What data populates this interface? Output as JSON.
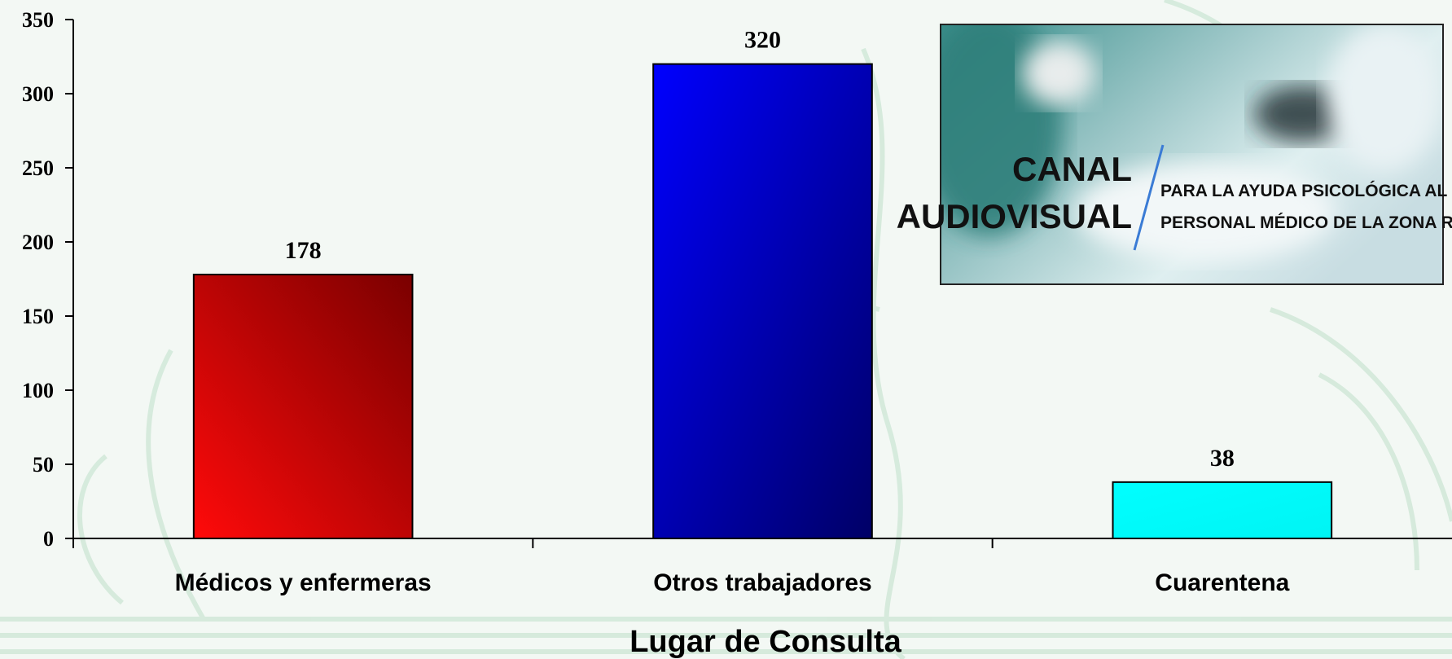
{
  "chart_data": {
    "type": "bar",
    "categories": [
      "Médicos y enfermeras",
      "Otros trabajadores",
      "Cuarentena"
    ],
    "values": [
      178,
      320,
      38
    ],
    "value_labels": [
      "178",
      "320",
      "38"
    ],
    "yticks": [
      "0",
      "50",
      "100",
      "150",
      "200",
      "250",
      "300",
      "350"
    ],
    "ylim": [
      0,
      350
    ],
    "xlabel": "Lugar de Consulta",
    "ylabel": "",
    "title": "",
    "colors": {
      "bar_0": [
        "#ff0a0a",
        "#7a0000"
      ],
      "bar_1": [
        "#0000ff",
        "#000066"
      ],
      "bar_2": [
        "#00ffff",
        "#00ffff"
      ],
      "axis": "#000000",
      "background_ornament": "#cfe6d6"
    },
    "grid": false
  },
  "inset": {
    "channel_line1": "CANAL",
    "channel_line2": "AUDIOVISUAL",
    "subtitle_line1": "PARA LA AYUDA PSICOLÓGICA AL",
    "subtitle_line2": "PERSONAL MÉDICO DE LA ZONA ROJA"
  }
}
